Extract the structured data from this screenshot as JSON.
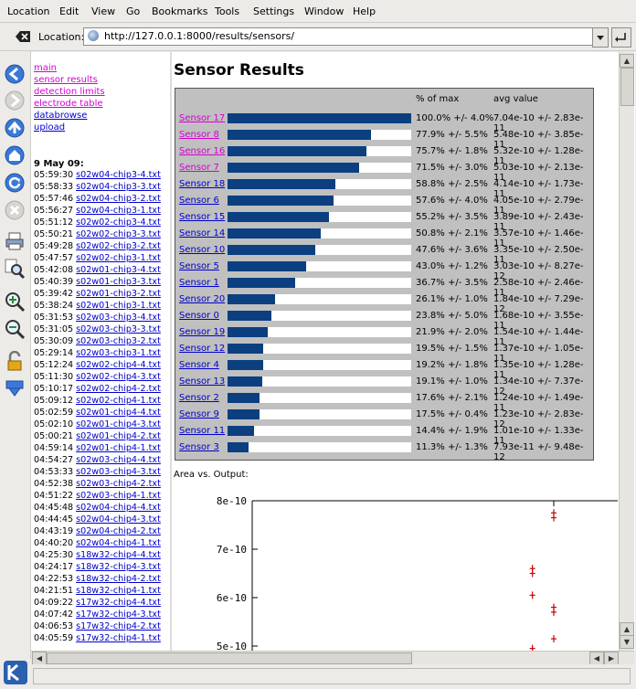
{
  "menu": [
    {
      "label": "Location"
    },
    {
      "label": "Edit"
    },
    {
      "label": "View"
    },
    {
      "label": "Go"
    },
    {
      "label": "Bookmarks"
    },
    {
      "label": "Tools"
    },
    {
      "label": "Settings"
    },
    {
      "label": "Window"
    },
    {
      "label": "Help"
    }
  ],
  "location": {
    "label": "Location:",
    "url": "http://127.0.0.1:8000/results/sensors/"
  },
  "nav_links": [
    {
      "label": "main",
      "visited": true
    },
    {
      "label": "sensor results",
      "visited": true
    },
    {
      "label": "detection limits",
      "visited": true
    },
    {
      "label": "electrode table",
      "visited": true
    },
    {
      "label": "databrowse",
      "visited": false
    },
    {
      "label": "upload",
      "visited": false
    }
  ],
  "log": {
    "date": "9 May 09:",
    "entries": [
      {
        "time": "05:59:30",
        "file": "s02w04-chip3-4.txt"
      },
      {
        "time": "05:58:33",
        "file": "s02w04-chip3-3.txt"
      },
      {
        "time": "05:57:46",
        "file": "s02w04-chip3-2.txt"
      },
      {
        "time": "05:56:27",
        "file": "s02w04-chip3-1.txt"
      },
      {
        "time": "05:51:12",
        "file": "s02w02-chip3-4.txt"
      },
      {
        "time": "05:50:21",
        "file": "s02w02-chip3-3.txt"
      },
      {
        "time": "05:49:28",
        "file": "s02w02-chip3-2.txt"
      },
      {
        "time": "05:47:57",
        "file": "s02w02-chip3-1.txt"
      },
      {
        "time": "05:42:08",
        "file": "s02w01-chip3-4.txt"
      },
      {
        "time": "05:40:39",
        "file": "s02w01-chip3-3.txt"
      },
      {
        "time": "05:39:42",
        "file": "s02w01-chip3-2.txt"
      },
      {
        "time": "05:38:24",
        "file": "s02w01-chip3-1.txt"
      },
      {
        "time": "05:31:53",
        "file": "s02w03-chip3-4.txt"
      },
      {
        "time": "05:31:05",
        "file": "s02w03-chip3-3.txt"
      },
      {
        "time": "05:30:09",
        "file": "s02w03-chip3-2.txt"
      },
      {
        "time": "05:29:14",
        "file": "s02w03-chip3-1.txt"
      },
      {
        "time": "05:12:24",
        "file": "s02w02-chip4-4.txt"
      },
      {
        "time": "05:11:30",
        "file": "s02w02-chip4-3.txt"
      },
      {
        "time": "05:10:17",
        "file": "s02w02-chip4-2.txt"
      },
      {
        "time": "05:09:12",
        "file": "s02w02-chip4-1.txt"
      },
      {
        "time": "05:02:59",
        "file": "s02w01-chip4-4.txt"
      },
      {
        "time": "05:02:10",
        "file": "s02w01-chip4-3.txt"
      },
      {
        "time": "05:00:21",
        "file": "s02w01-chip4-2.txt"
      },
      {
        "time": "04:59:14",
        "file": "s02w01-chip4-1.txt"
      },
      {
        "time": "04:54:27",
        "file": "s02w03-chip4-4.txt"
      },
      {
        "time": "04:53:33",
        "file": "s02w03-chip4-3.txt"
      },
      {
        "time": "04:52:38",
        "file": "s02w03-chip4-2.txt"
      },
      {
        "time": "04:51:22",
        "file": "s02w03-chip4-1.txt"
      },
      {
        "time": "04:45:48",
        "file": "s02w04-chip4-4.txt"
      },
      {
        "time": "04:44:45",
        "file": "s02w04-chip4-3.txt"
      },
      {
        "time": "04:43:19",
        "file": "s02w04-chip4-2.txt"
      },
      {
        "time": "04:40:20",
        "file": "s02w04-chip4-1.txt"
      },
      {
        "time": "04:25:30",
        "file": "s18w32-chip4-4.txt"
      },
      {
        "time": "04:24:17",
        "file": "s18w32-chip4-3.txt"
      },
      {
        "time": "04:22:53",
        "file": "s18w32-chip4-2.txt"
      },
      {
        "time": "04:21:51",
        "file": "s18w32-chip4-1.txt"
      },
      {
        "time": "04:09:22",
        "file": "s17w32-chip4-4.txt"
      },
      {
        "time": "04:07:42",
        "file": "s17w32-chip4-3.txt"
      },
      {
        "time": "04:06:53",
        "file": "s17w32-chip4-2.txt"
      },
      {
        "time": "04:05:59",
        "file": "s17w32-chip4-1.txt"
      }
    ]
  },
  "main": {
    "title": "Sensor Results",
    "col_pct": "% of max",
    "col_avg": "avg value",
    "sensors": [
      {
        "name": "Sensor 17",
        "pct": 100.0,
        "pct_text": "100.0% +/- 4.0%",
        "avg": "7.04e-10 +/- 2.83e-11",
        "visited": true
      },
      {
        "name": "Sensor 8",
        "pct": 77.9,
        "pct_text": "77.9% +/- 5.5%",
        "avg": "5.48e-10 +/- 3.85e-11",
        "visited": true
      },
      {
        "name": "Sensor 16",
        "pct": 75.7,
        "pct_text": "75.7% +/- 1.8%",
        "avg": "5.32e-10 +/- 1.28e-11",
        "visited": true
      },
      {
        "name": "Sensor 7",
        "pct": 71.5,
        "pct_text": "71.5% +/- 3.0%",
        "avg": "5.03e-10 +/- 2.13e-11",
        "visited": true
      },
      {
        "name": "Sensor 18",
        "pct": 58.8,
        "pct_text": "58.8% +/- 2.5%",
        "avg": "4.14e-10 +/- 1.73e-11",
        "visited": false
      },
      {
        "name": "Sensor 6",
        "pct": 57.6,
        "pct_text": "57.6% +/- 4.0%",
        "avg": "4.05e-10 +/- 2.79e-11",
        "visited": false
      },
      {
        "name": "Sensor 15",
        "pct": 55.2,
        "pct_text": "55.2% +/- 3.5%",
        "avg": "3.89e-10 +/- 2.43e-11",
        "visited": false
      },
      {
        "name": "Sensor 14",
        "pct": 50.8,
        "pct_text": "50.8% +/- 2.1%",
        "avg": "3.57e-10 +/- 1.46e-11",
        "visited": false
      },
      {
        "name": "Sensor 10",
        "pct": 47.6,
        "pct_text": "47.6% +/- 3.6%",
        "avg": "3.35e-10 +/- 2.50e-11",
        "visited": false
      },
      {
        "name": "Sensor 5",
        "pct": 43.0,
        "pct_text": "43.0% +/- 1.2%",
        "avg": "3.03e-10 +/- 8.27e-12",
        "visited": false
      },
      {
        "name": "Sensor 1",
        "pct": 36.7,
        "pct_text": "36.7% +/- 3.5%",
        "avg": "2.58e-10 +/- 2.46e-11",
        "visited": false
      },
      {
        "name": "Sensor 20",
        "pct": 26.1,
        "pct_text": "26.1% +/- 1.0%",
        "avg": "1.84e-10 +/- 7.29e-12",
        "visited": false
      },
      {
        "name": "Sensor 0",
        "pct": 23.8,
        "pct_text": "23.8% +/- 5.0%",
        "avg": "1.68e-10 +/- 3.55e-11",
        "visited": false
      },
      {
        "name": "Sensor 19",
        "pct": 21.9,
        "pct_text": "21.9% +/- 2.0%",
        "avg": "1.54e-10 +/- 1.44e-11",
        "visited": false
      },
      {
        "name": "Sensor 12",
        "pct": 19.5,
        "pct_text": "19.5% +/- 1.5%",
        "avg": "1.37e-10 +/- 1.05e-11",
        "visited": false
      },
      {
        "name": "Sensor 4",
        "pct": 19.2,
        "pct_text": "19.2% +/- 1.8%",
        "avg": "1.35e-10 +/- 1.28e-11",
        "visited": false
      },
      {
        "name": "Sensor 13",
        "pct": 19.1,
        "pct_text": "19.1% +/- 1.0%",
        "avg": "1.34e-10 +/- 7.37e-12",
        "visited": false
      },
      {
        "name": "Sensor 2",
        "pct": 17.6,
        "pct_text": "17.6% +/- 2.1%",
        "avg": "1.24e-10 +/- 1.49e-11",
        "visited": false
      },
      {
        "name": "Sensor 9",
        "pct": 17.5,
        "pct_text": "17.5% +/- 0.4%",
        "avg": "1.23e-10 +/- 2.83e-12",
        "visited": false
      },
      {
        "name": "Sensor 11",
        "pct": 14.4,
        "pct_text": "14.4% +/- 1.9%",
        "avg": "1.01e-10 +/- 1.33e-11",
        "visited": false
      },
      {
        "name": "Sensor 3",
        "pct": 11.3,
        "pct_text": "11.3% +/- 1.3%",
        "avg": "7.93e-11 +/- 9.48e-12",
        "visited": false
      }
    ],
    "plot_title": "Area vs. Output:"
  },
  "chart_data": {
    "type": "scatter",
    "title": "Area vs. Output:",
    "y_ticks": [
      "8e-10",
      "7e-10",
      "6e-10",
      "5e-10"
    ],
    "ylim": [
      5e-10,
      8e-10
    ],
    "marker_color": "#cc0000",
    "points": [
      {
        "x": 0.99,
        "y": 7.75e-10
      },
      {
        "x": 0.99,
        "y": 7.65e-10
      },
      {
        "x": 0.92,
        "y": 6.6e-10
      },
      {
        "x": 0.92,
        "y": 6.5e-10
      },
      {
        "x": 0.92,
        "y": 6.05e-10
      },
      {
        "x": 0.99,
        "y": 5.8e-10
      },
      {
        "x": 0.99,
        "y": 5.7e-10
      },
      {
        "x": 0.99,
        "y": 5.15e-10
      },
      {
        "x": 0.92,
        "y": 4.95e-10
      }
    ],
    "xlim": [
      0,
      1.2
    ]
  },
  "colors": {
    "bar": "#0b3f80",
    "table_bg": "#c0c0c0",
    "link": "#0000cc",
    "visited": "#d400d4"
  }
}
